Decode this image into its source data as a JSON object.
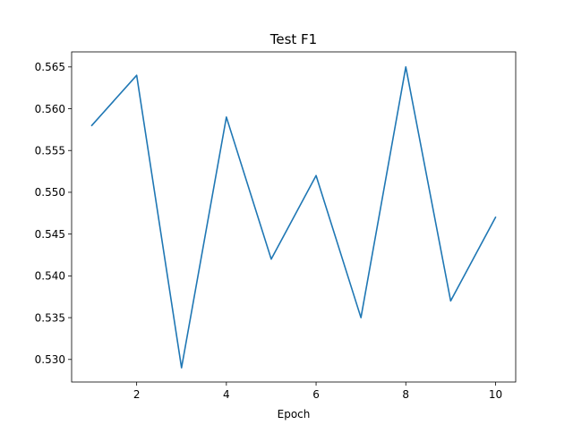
{
  "chart_data": {
    "type": "line",
    "title": "Test F1",
    "xlabel": "Epoch",
    "ylabel": "",
    "xlim": [
      0.55,
      10.45
    ],
    "ylim": [
      0.5273,
      0.5668
    ],
    "xticks": [
      2,
      4,
      6,
      8,
      10
    ],
    "yticks": [
      0.53,
      0.535,
      0.54,
      0.545,
      0.55,
      0.555,
      0.56,
      0.565
    ],
    "ytick_labels": [
      "0.530",
      "0.535",
      "0.540",
      "0.545",
      "0.550",
      "0.555",
      "0.560",
      "0.565"
    ],
    "grid": false,
    "series": [
      {
        "color": "#1f77b4",
        "x": [
          1,
          2,
          3,
          4,
          5,
          6,
          7,
          8,
          9,
          10
        ],
        "values": [
          0.558,
          0.564,
          0.529,
          0.559,
          0.542,
          0.552,
          0.535,
          0.565,
          0.537,
          0.547
        ]
      }
    ]
  }
}
